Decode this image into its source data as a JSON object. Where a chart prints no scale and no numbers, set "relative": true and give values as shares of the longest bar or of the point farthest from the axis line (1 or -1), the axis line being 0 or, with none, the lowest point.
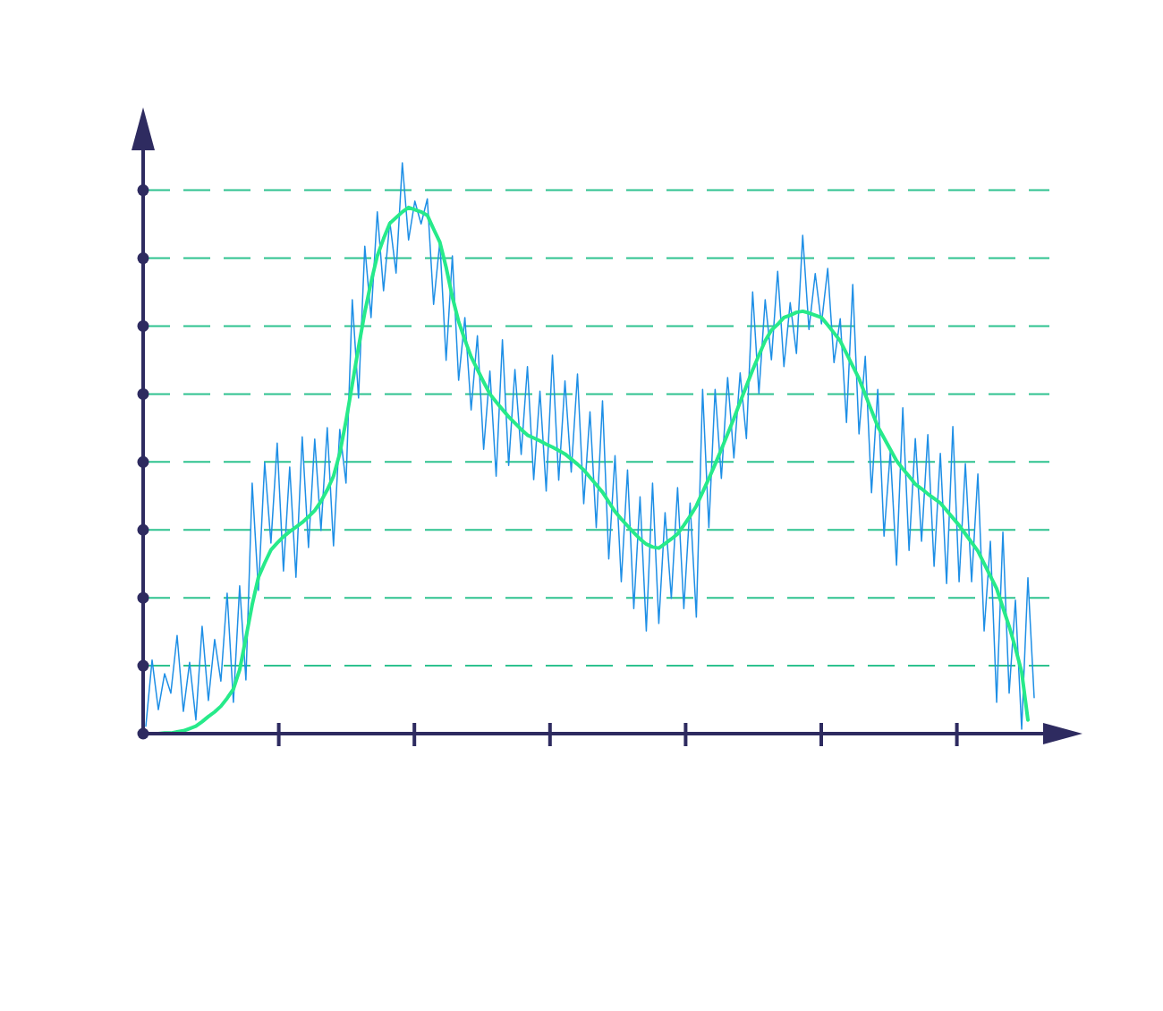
{
  "chart_data": {
    "type": "line",
    "relative": true,
    "categories": [
      null,
      null,
      null,
      null,
      null,
      null,
      null,
      null,
      null,
      null,
      null,
      null,
      null,
      null,
      null,
      null,
      null,
      null,
      null,
      null,
      null,
      null,
      null,
      null,
      null,
      null,
      null,
      null,
      null,
      null,
      null,
      null,
      null,
      null,
      null,
      null,
      null,
      null,
      null,
      null,
      null,
      null,
      null,
      null,
      null,
      null,
      null,
      null,
      null,
      null,
      null,
      null,
      null,
      null,
      null,
      null,
      null,
      null,
      null,
      null,
      null,
      null,
      null,
      null,
      null,
      null,
      null,
      null,
      null,
      null,
      null,
      null,
      null,
      null,
      null,
      null,
      null,
      null,
      null,
      null,
      null,
      null,
      null,
      null,
      null,
      null,
      null,
      null,
      null,
      null,
      null,
      null,
      null,
      null,
      null,
      null,
      null,
      null,
      null,
      null,
      null,
      null,
      null,
      null,
      null,
      null,
      null,
      null,
      null,
      null,
      null,
      null,
      null,
      null,
      null,
      null,
      null,
      null,
      null,
      null,
      null,
      null,
      null,
      null,
      null,
      null,
      null,
      null,
      null,
      null,
      null,
      null,
      null,
      null,
      null,
      null,
      null,
      null,
      null,
      null,
      null,
      null,
      null
    ],
    "ref_lines": [
      {
        "axis": "y",
        "value": 0.119,
        "color": "#2ec28f",
        "line_style": "dashed"
      },
      {
        "axis": "y",
        "value": 0.238,
        "color": "#2ec28f",
        "line_style": "dashed"
      },
      {
        "axis": "y",
        "value": 0.357,
        "color": "#2ec28f",
        "line_style": "dashed"
      },
      {
        "axis": "y",
        "value": 0.476,
        "color": "#2ec28f",
        "line_style": "dashed"
      },
      {
        "axis": "y",
        "value": 0.595,
        "color": "#2ec28f",
        "line_style": "dashed"
      },
      {
        "axis": "y",
        "value": 0.714,
        "color": "#2ec28f",
        "line_style": "dashed"
      },
      {
        "axis": "y",
        "value": 0.833,
        "color": "#2ec28f",
        "line_style": "dashed"
      },
      {
        "axis": "y",
        "value": 0.952,
        "color": "#2ec28f",
        "line_style": "dashed"
      }
    ],
    "series": [
      {
        "color": "#1e8fe6",
        "values": [
          0.013,
          0.129,
          0.042,
          0.105,
          0.071,
          0.172,
          0.039,
          0.125,
          0.024,
          0.188,
          0.058,
          0.165,
          0.092,
          0.246,
          0.055,
          0.259,
          0.094,
          0.439,
          0.251,
          0.475,
          0.334,
          0.509,
          0.285,
          0.467,
          0.274,
          0.52,
          0.326,
          0.516,
          0.356,
          0.536,
          0.329,
          0.533,
          0.439,
          0.76,
          0.588,
          0.854,
          0.729,
          0.914,
          0.776,
          0.897,
          0.807,
          1,
          0.865,
          0.933,
          0.893,
          0.937,
          0.752,
          0.862,
          0.654,
          0.837,
          0.619,
          0.729,
          0.567,
          0.697,
          0.498,
          0.635,
          0.451,
          0.69,
          0.47,
          0.638,
          0.489,
          0.643,
          0.445,
          0.6,
          0.425,
          0.663,
          0.444,
          0.618,
          0.458,
          0.63,
          0.403,
          0.564,
          0.361,
          0.583,
          0.306,
          0.487,
          0.266,
          0.462,
          0.219,
          0.415,
          0.18,
          0.439,
          0.193,
          0.387,
          0.237,
          0.431,
          0.219,
          0.404,
          0.204,
          0.603,
          0.361,
          0.603,
          0.447,
          0.624,
          0.483,
          0.632,
          0.517,
          0.774,
          0.596,
          0.76,
          0.655,
          0.81,
          0.643,
          0.755,
          0.666,
          0.873,
          0.708,
          0.806,
          0.718,
          0.815,
          0.65,
          0.727,
          0.545,
          0.787,
          0.525,
          0.661,
          0.422,
          0.603,
          0.346,
          0.494,
          0.295,
          0.571,
          0.321,
          0.517,
          0.337,
          0.524,
          0.293,
          0.491,
          0.263,
          0.538,
          0.266,
          0.473,
          0.266,
          0.455,
          0.18,
          0.337,
          0.055,
          0.353,
          0.071,
          0.234,
          0.008,
          0.273,
          0.063
        ]
      },
      {
        "color": "#27ea8a",
        "values": [
          null,
          null,
          0,
          0.001,
          0.001,
          0.003,
          0.005,
          0.009,
          0.013,
          0.021,
          0.03,
          0.038,
          0.048,
          0.062,
          0.078,
          0.112,
          0.168,
          0.226,
          0.274,
          0.299,
          0.322,
          0.334,
          0.345,
          0.354,
          0.362,
          0.37,
          0.38,
          0.391,
          0.407,
          0.427,
          0.451,
          0.491,
          0.548,
          0.612,
          0.677,
          0.738,
          0.791,
          0.837,
          0.867,
          0.894,
          0.904,
          0.914,
          0.922,
          0.918,
          0.914,
          0.908,
          0.884,
          0.861,
          0.817,
          0.765,
          0.722,
          0.69,
          0.66,
          0.638,
          0.616,
          0.595,
          0.581,
          0.568,
          0.555,
          0.544,
          0.533,
          0.523,
          0.518,
          0.513,
          0.507,
          0.502,
          0.496,
          0.49,
          0.481,
          0.472,
          0.462,
          0.449,
          0.436,
          0.423,
          0.406,
          0.389,
          0.376,
          0.364,
          0.352,
          0.341,
          0.332,
          0.327,
          0.325,
          0.333,
          0.341,
          0.35,
          0.365,
          0.381,
          0.399,
          0.423,
          0.447,
          0.472,
          0.498,
          0.525,
          0.552,
          0.581,
          0.609,
          0.637,
          0.663,
          0.688,
          0.707,
          0.717,
          0.729,
          0.733,
          0.738,
          0.74,
          0.737,
          0.733,
          0.729,
          0.716,
          0.702,
          0.688,
          0.666,
          0.644,
          0.622,
          0.594,
          0.566,
          0.538,
          0.518,
          0.498,
          0.478,
          0.464,
          0.451,
          0.437,
          0.429,
          0.42,
          0.412,
          0.404,
          0.391,
          0.378,
          0.365,
          0.35,
          0.335,
          0.32,
          0.298,
          0.276,
          0.254,
          0.221,
          0.188,
          0.15,
          0.108,
          0.024,
          null
        ]
      }
    ]
  }
}
